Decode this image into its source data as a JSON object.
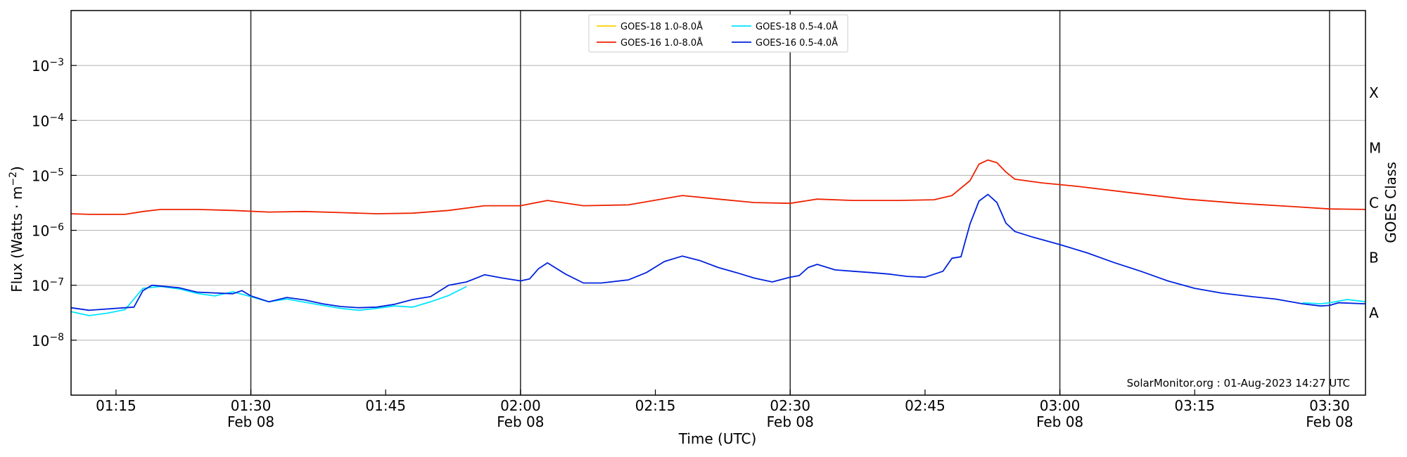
{
  "chart_data": {
    "type": "line",
    "ylabel": "Flux (Watts · m⁻²)",
    "ylabel_base": "Flux (Watts · m",
    "ylabel_exp": "−2",
    "ylabel_close": ")",
    "xlabel": "Time (UTC)",
    "right_label": "GOES Class",
    "y_scale": "log",
    "ylim": [
      1e-09,
      0.01
    ],
    "xlim": [
      "01:10",
      "03:34"
    ],
    "y_ticks": [
      {
        "value": 1e-08,
        "base": "10",
        "exp": "−8"
      },
      {
        "value": 1e-07,
        "base": "10",
        "exp": "−7"
      },
      {
        "value": 1e-06,
        "base": "10",
        "exp": "−6"
      },
      {
        "value": 1e-05,
        "base": "10",
        "exp": "−5"
      },
      {
        "value": 0.0001,
        "base": "10",
        "exp": "−4"
      },
      {
        "value": 0.001,
        "base": "10",
        "exp": "−3"
      }
    ],
    "x_ticks": [
      {
        "time": "01:15",
        "label": "01:15",
        "sub": ""
      },
      {
        "time": "01:30",
        "label": "01:30",
        "sub": "Feb 08"
      },
      {
        "time": "01:45",
        "label": "01:45",
        "sub": ""
      },
      {
        "time": "02:00",
        "label": "02:00",
        "sub": "Feb 08"
      },
      {
        "time": "02:15",
        "label": "02:15",
        "sub": ""
      },
      {
        "time": "02:30",
        "label": "02:30",
        "sub": "Feb 08"
      },
      {
        "time": "02:45",
        "label": "02:45",
        "sub": ""
      },
      {
        "time": "03:00",
        "label": "03:00",
        "sub": "Feb 08"
      },
      {
        "time": "03:15",
        "label": "03:15",
        "sub": ""
      },
      {
        "time": "03:30",
        "label": "03:30",
        "sub": "Feb 08"
      }
    ],
    "vertical_lines": [
      "01:30",
      "02:00",
      "02:30",
      "03:00",
      "03:30"
    ],
    "goes_classes": [
      {
        "label": "A",
        "value": 3.16e-08
      },
      {
        "label": "B",
        "value": 3.16e-07
      },
      {
        "label": "C",
        "value": 3.16e-06
      },
      {
        "label": "M",
        "value": 3.16e-05
      },
      {
        "label": "X",
        "value": 0.000316
      }
    ],
    "grid": true,
    "legend_position": "top-center",
    "legend": [
      {
        "name": "GOES-18 1.0-8.0Å",
        "color": "#ffd000",
        "col": 0,
        "row": 0
      },
      {
        "name": "GOES-16 1.0-8.0Å",
        "color": "#ee2200",
        "col": 0,
        "row": 1
      },
      {
        "name": "GOES-18 0.5-4.0Å",
        "color": "#00e5ff",
        "col": 1,
        "row": 0
      },
      {
        "name": "GOES-16 0.5-4.0Å",
        "color": "#0022dd",
        "col": 1,
        "row": 1
      }
    ],
    "credit": "SolarMonitor.org : 01-Aug-2023 14:27 UTC",
    "series": [
      {
        "name": "GOES-16 1.0-8.0Å",
        "color": "#ee2200",
        "points": [
          [
            "01:10",
            2e-06
          ],
          [
            "01:12",
            1.95e-06
          ],
          [
            "01:16",
            1.95e-06
          ],
          [
            "01:18",
            2.2e-06
          ],
          [
            "01:20",
            2.4e-06
          ],
          [
            "01:24",
            2.4e-06
          ],
          [
            "01:28",
            2.3e-06
          ],
          [
            "01:32",
            2.15e-06
          ],
          [
            "01:36",
            2.2e-06
          ],
          [
            "01:40",
            2.1e-06
          ],
          [
            "01:44",
            2e-06
          ],
          [
            "01:48",
            2.05e-06
          ],
          [
            "01:52",
            2.3e-06
          ],
          [
            "01:56",
            2.8e-06
          ],
          [
            "02:00",
            2.8e-06
          ],
          [
            "02:03",
            3.5e-06
          ],
          [
            "02:07",
            2.8e-06
          ],
          [
            "02:12",
            2.9e-06
          ],
          [
            "02:18",
            4.3e-06
          ],
          [
            "02:22",
            3.7e-06
          ],
          [
            "02:26",
            3.2e-06
          ],
          [
            "02:30",
            3.1e-06
          ],
          [
            "02:33",
            3.7e-06
          ],
          [
            "02:37",
            3.5e-06
          ],
          [
            "02:42",
            3.5e-06
          ],
          [
            "02:46",
            3.6e-06
          ],
          [
            "02:48",
            4.3e-06
          ],
          [
            "02:50",
            8e-06
          ],
          [
            "02:51",
            1.6e-05
          ],
          [
            "02:52",
            1.9e-05
          ],
          [
            "02:53",
            1.7e-05
          ],
          [
            "02:54",
            1.15e-05
          ],
          [
            "02:55",
            8.5e-06
          ],
          [
            "02:58",
            7.3e-06
          ],
          [
            "03:02",
            6.3e-06
          ],
          [
            "03:08",
            4.8e-06
          ],
          [
            "03:14",
            3.7e-06
          ],
          [
            "03:20",
            3.1e-06
          ],
          [
            "03:26",
            2.7e-06
          ],
          [
            "03:30",
            2.45e-06
          ],
          [
            "03:34",
            2.4e-06
          ]
        ]
      },
      {
        "name": "GOES-18 0.5-4.0Å",
        "color": "#00e5ff",
        "points": [
          [
            "01:10",
            3.3e-08
          ],
          [
            "01:12",
            2.8e-08
          ],
          [
            "01:14",
            3.1e-08
          ],
          [
            "01:16",
            3.6e-08
          ],
          [
            "01:18",
            8.8e-08
          ],
          [
            "01:20",
            9.5e-08
          ],
          [
            "01:22",
            8.6e-08
          ],
          [
            "01:24",
            7.1e-08
          ],
          [
            "01:26",
            6.4e-08
          ],
          [
            "01:28",
            7.6e-08
          ],
          [
            "01:30",
            6.2e-08
          ],
          [
            "01:32",
            5e-08
          ],
          [
            "01:34",
            5.6e-08
          ],
          [
            "01:36",
            4.9e-08
          ],
          [
            "01:38",
            4.3e-08
          ],
          [
            "01:40",
            3.8e-08
          ],
          [
            "01:42",
            3.5e-08
          ],
          [
            "01:44",
            3.8e-08
          ],
          [
            "01:46",
            4.2e-08
          ],
          [
            "01:48",
            4e-08
          ],
          [
            "01:50",
            5e-08
          ],
          [
            "01:52",
            6.5e-08
          ],
          [
            "01:54",
            9.5e-08
          ]
        ]
      },
      {
        "name": "GOES-16 0.5-4.0Å",
        "color": "#0022dd",
        "points": [
          [
            "01:10",
            3.9e-08
          ],
          [
            "01:12",
            3.5e-08
          ],
          [
            "01:16",
            3.9e-08
          ],
          [
            "01:17",
            4e-08
          ],
          [
            "01:18",
            8e-08
          ],
          [
            "01:19",
            1e-07
          ],
          [
            "01:22",
            9e-08
          ],
          [
            "01:24",
            7.5e-08
          ],
          [
            "01:28",
            7e-08
          ],
          [
            "01:29",
            8e-08
          ],
          [
            "01:30",
            6.4e-08
          ],
          [
            "01:32",
            5e-08
          ],
          [
            "01:34",
            6e-08
          ],
          [
            "01:36",
            5.4e-08
          ],
          [
            "01:38",
            4.6e-08
          ],
          [
            "01:40",
            4.1e-08
          ],
          [
            "01:42",
            3.9e-08
          ],
          [
            "01:44",
            4e-08
          ],
          [
            "01:46",
            4.5e-08
          ],
          [
            "01:48",
            5.5e-08
          ],
          [
            "01:50",
            6.2e-08
          ],
          [
            "01:52",
            1e-07
          ],
          [
            "01:54",
            1.15e-07
          ],
          [
            "01:56",
            1.55e-07
          ],
          [
            "01:58",
            1.35e-07
          ],
          [
            "02:00",
            1.2e-07
          ],
          [
            "02:01",
            1.3e-07
          ],
          [
            "02:02",
            2e-07
          ],
          [
            "02:03",
            2.55e-07
          ],
          [
            "02:05",
            1.6e-07
          ],
          [
            "02:07",
            1.1e-07
          ],
          [
            "02:09",
            1.1e-07
          ],
          [
            "02:12",
            1.25e-07
          ],
          [
            "02:14",
            1.7e-07
          ],
          [
            "02:16",
            2.7e-07
          ],
          [
            "02:18",
            3.4e-07
          ],
          [
            "02:20",
            2.8e-07
          ],
          [
            "02:22",
            2.1e-07
          ],
          [
            "02:24",
            1.7e-07
          ],
          [
            "02:26",
            1.35e-07
          ],
          [
            "02:28",
            1.15e-07
          ],
          [
            "02:30",
            1.4e-07
          ],
          [
            "02:31",
            1.5e-07
          ],
          [
            "02:32",
            2.1e-07
          ],
          [
            "02:33",
            2.4e-07
          ],
          [
            "02:35",
            1.9e-07
          ],
          [
            "02:37",
            1.8e-07
          ],
          [
            "02:39",
            1.7e-07
          ],
          [
            "02:41",
            1.6e-07
          ],
          [
            "02:43",
            1.45e-07
          ],
          [
            "02:45",
            1.4e-07
          ],
          [
            "02:47",
            1.8e-07
          ],
          [
            "02:48",
            3.1e-07
          ],
          [
            "02:49",
            3.3e-07
          ],
          [
            "02:50",
            1.3e-06
          ],
          [
            "02:51",
            3.4e-06
          ],
          [
            "02:52",
            4.5e-06
          ],
          [
            "02:53",
            3.2e-06
          ],
          [
            "02:54",
            1.35e-06
          ],
          [
            "02:55",
            9.5e-07
          ],
          [
            "02:57",
            7.5e-07
          ],
          [
            "03:00",
            5.5e-07
          ],
          [
            "03:03",
            3.9e-07
          ],
          [
            "03:06",
            2.6e-07
          ],
          [
            "03:09",
            1.8e-07
          ],
          [
            "03:12",
            1.2e-07
          ],
          [
            "03:15",
            8.8e-08
          ],
          [
            "03:18",
            7.2e-08
          ],
          [
            "03:21",
            6.3e-08
          ],
          [
            "03:24",
            5.6e-08
          ],
          [
            "03:27",
            4.6e-08
          ],
          [
            "03:29",
            4.2e-08
          ],
          [
            "03:30",
            4.3e-08
          ],
          [
            "03:31",
            4.8e-08
          ],
          [
            "03:34",
            4.6e-08
          ]
        ]
      },
      {
        "name": "GOES-18 0.5-4.0Å",
        "color": "#00e5ff",
        "points": [
          [
            "03:27",
            4.8e-08
          ],
          [
            "03:29",
            4.6e-08
          ],
          [
            "03:30",
            4.8e-08
          ],
          [
            "03:32",
            5.5e-08
          ],
          [
            "03:34",
            5e-08
          ]
        ]
      }
    ]
  }
}
